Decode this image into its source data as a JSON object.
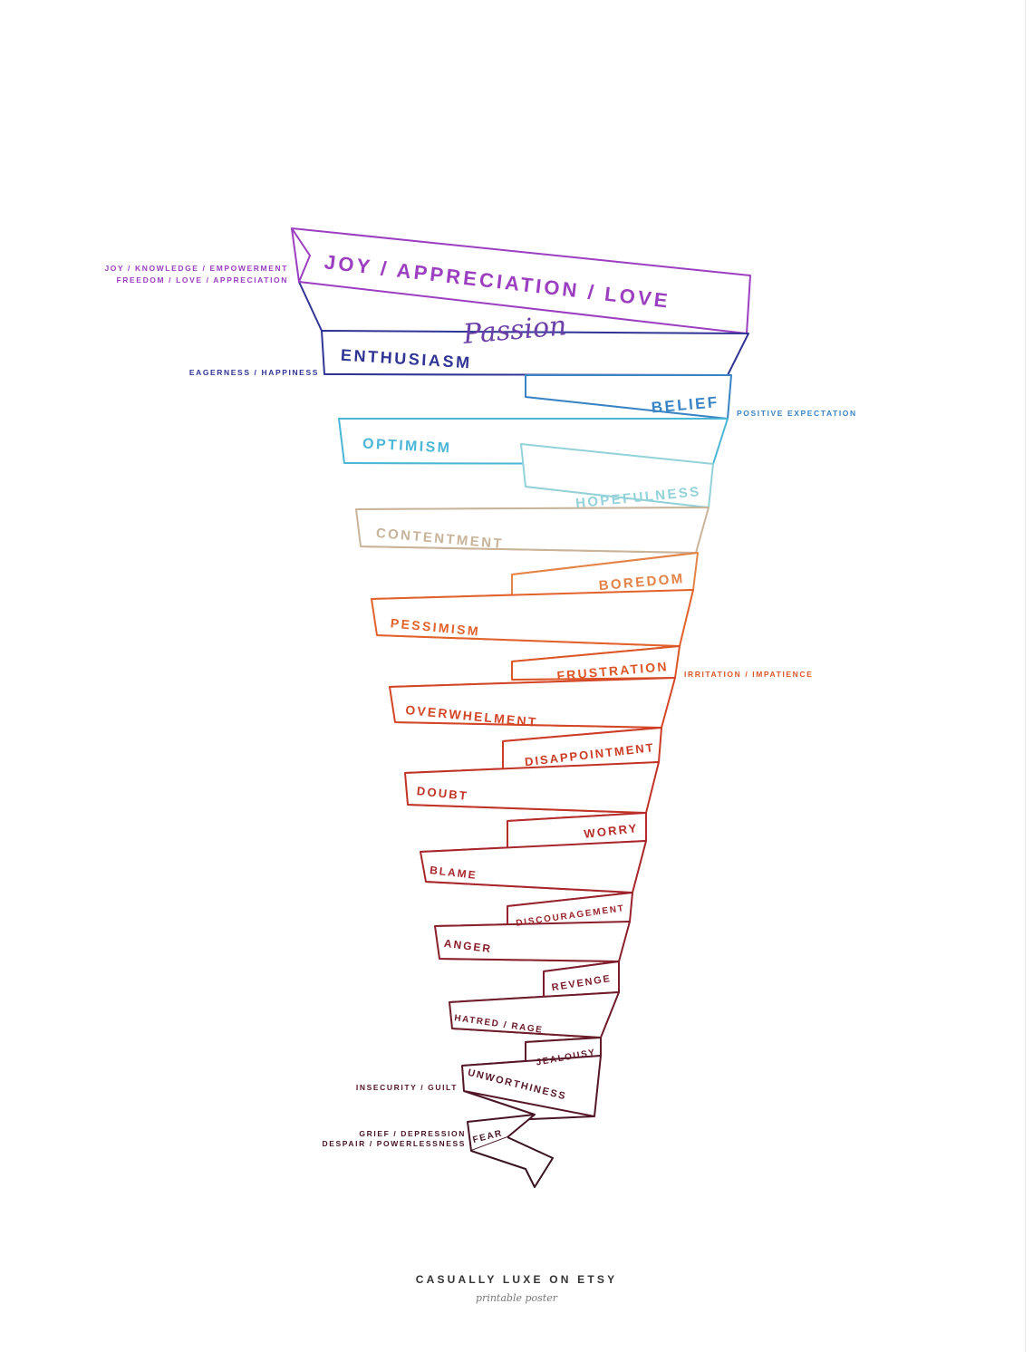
{
  "bands": [
    {
      "label": "JOY / APPRECIATION / LOVE",
      "color": "#9b3fc0"
    },
    {
      "label": "ENTHUSIASM",
      "color": "#2f3495"
    },
    {
      "label": "BELIEF",
      "color": "#3a83c4"
    },
    {
      "label": "OPTIMISM",
      "color": "#4bb6d6"
    },
    {
      "label": "HOPEFULNESS",
      "color": "#92d2d8"
    },
    {
      "label": "CONTENTMENT",
      "color": "#c8b49a"
    },
    {
      "label": "BOREDOM",
      "color": "#e38348"
    },
    {
      "label": "PESSIMISM",
      "color": "#e2622c"
    },
    {
      "label": "FRUSTRATION",
      "color": "#dc5628"
    },
    {
      "label": "OVERWHELMENT",
      "color": "#d34627"
    },
    {
      "label": "DISAPPOINTMENT",
      "color": "#cc3b25"
    },
    {
      "label": "DOUBT",
      "color": "#c13326"
    },
    {
      "label": "WORRY",
      "color": "#b52c2a"
    },
    {
      "label": "BLAME",
      "color": "#a8262b"
    },
    {
      "label": "DISCOURAGEMENT",
      "color": "#99232d"
    },
    {
      "label": "ANGER",
      "color": "#8a1f2c"
    },
    {
      "label": "REVENGE",
      "color": "#7d1d2c"
    },
    {
      "label": "HATRED / RAGE",
      "color": "#6e1b2a"
    },
    {
      "label": "JEALOUSY",
      "color": "#621a29"
    },
    {
      "label": "UNWORTHINESS",
      "color": "#551727"
    },
    {
      "label": "FEAR",
      "color": "#481525"
    }
  ],
  "script_word": {
    "text": "Passion",
    "color": "#6a3fa8"
  },
  "side_notes": [
    {
      "line1": "JOY / KNOWLEDGE / EMPOWERMENT",
      "line2": "FREEDOM / LOVE / APPRECIATION",
      "color": "#9b3fc0"
    },
    {
      "line1": "EAGERNESS / HAPPINESS",
      "line2": "",
      "color": "#2f3495"
    },
    {
      "line1": "POSITIVE EXPECTATION",
      "line2": "",
      "color": "#3a83c4"
    },
    {
      "line1": "IRRITATION / IMPATIENCE",
      "line2": "",
      "color": "#dc5628"
    },
    {
      "line1": "INSECURITY / GUILT",
      "line2": "",
      "color": "#551727"
    },
    {
      "line1": "GRIEF / DEPRESSION",
      "line2": "DESPAIR / POWERLESSNESS",
      "color": "#481525"
    }
  ],
  "footer": {
    "title": "CASUALLY LUXE ON ETSY",
    "subtitle": "printable poster"
  },
  "tail_color": "#3a1322"
}
